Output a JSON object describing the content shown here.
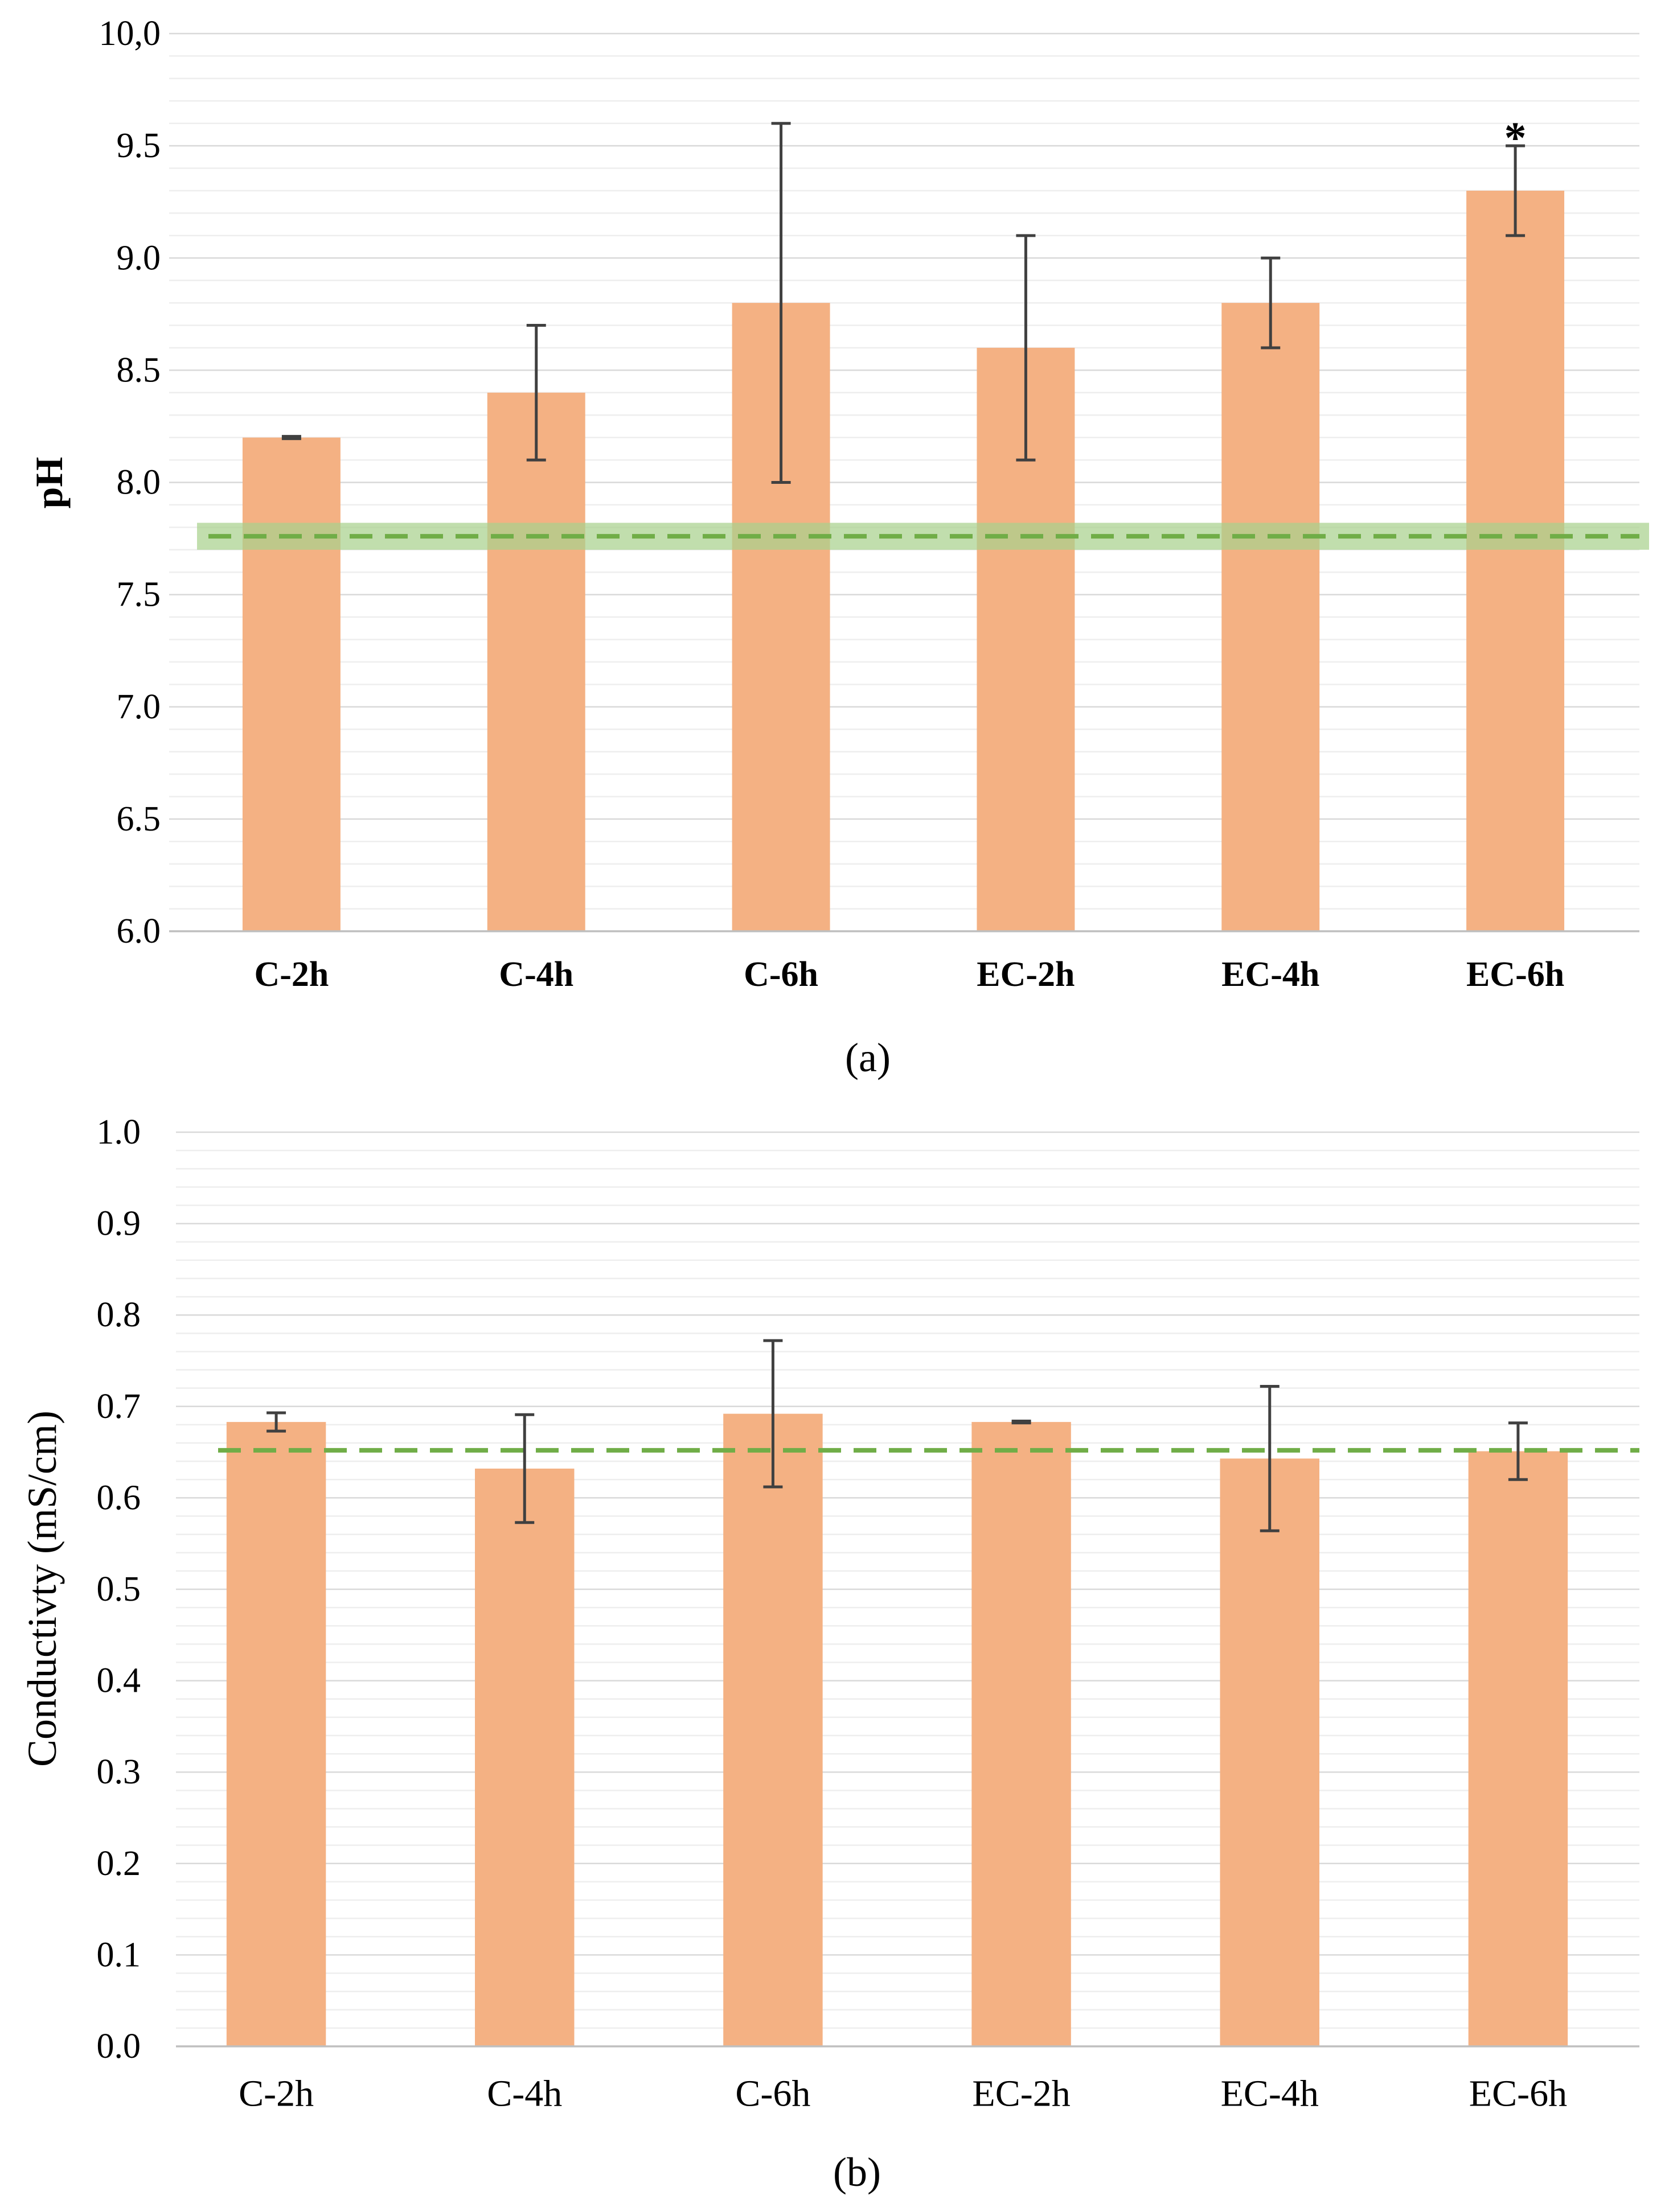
{
  "colors": {
    "bar": "#F4B183",
    "error_bar": "#404040",
    "reference_line": "#70AD47",
    "reference_band": "#A9D18E",
    "major_grid": "#D9D9D9",
    "minor_grid": "#EEEEEE",
    "axis_line": "#BFBFBF",
    "text": "#000000"
  },
  "chart_data": [
    {
      "type": "bar",
      "panel_label": "(a)",
      "title": "",
      "xlabel": "",
      "ylabel": "pH",
      "categories": [
        "C-2h",
        "C-4h",
        "C-6h",
        "EC-2h",
        "EC-4h",
        "EC-6h"
      ],
      "values": [
        8.2,
        8.4,
        8.8,
        8.6,
        8.8,
        9.3
      ],
      "errors": [
        0.005,
        0.3,
        0.8,
        0.5,
        0.2,
        0.2
      ],
      "ylim": [
        6.0,
        10.0
      ],
      "yticks": [
        6.0,
        6.5,
        7.0,
        7.5,
        8.0,
        8.5,
        9.0,
        9.5,
        10.0
      ],
      "ytick_labels": [
        "6.0",
        "6.5",
        "7.0",
        "7.5",
        "8.0",
        "8.5",
        "9.0",
        "9.5",
        "10,0"
      ],
      "minor_grid_step": 0.1,
      "grid": true,
      "reference_line": {
        "value": 7.76,
        "band": [
          7.7,
          7.82
        ]
      },
      "annotations": [
        {
          "category_index": 5,
          "text": "*"
        }
      ]
    },
    {
      "type": "bar",
      "panel_label": "(b)",
      "title": "",
      "xlabel": "",
      "ylabel": "Conductivty (mS/cm)",
      "categories": [
        "C-2h",
        "C-4h",
        "C-6h",
        "EC-2h",
        "EC-4h",
        "EC-6h"
      ],
      "values": [
        0.683,
        0.632,
        0.692,
        0.683,
        0.643,
        0.651
      ],
      "errors": [
        0.01,
        0.059,
        0.08,
        0.001,
        0.079,
        0.031
      ],
      "ylim": [
        0.0,
        1.0
      ],
      "yticks": [
        0.0,
        0.1,
        0.2,
        0.3,
        0.4,
        0.5,
        0.6,
        0.7,
        0.8,
        0.9,
        1.0
      ],
      "ytick_labels": [
        "0.0",
        "0.1",
        "0.2",
        "0.3",
        "0.4",
        "0.5",
        "0.6",
        "0.7",
        "0.8",
        "0.9",
        "1.0"
      ],
      "minor_grid_step": 0.02,
      "grid": true,
      "reference_line": {
        "value": 0.652
      },
      "annotations": []
    }
  ]
}
